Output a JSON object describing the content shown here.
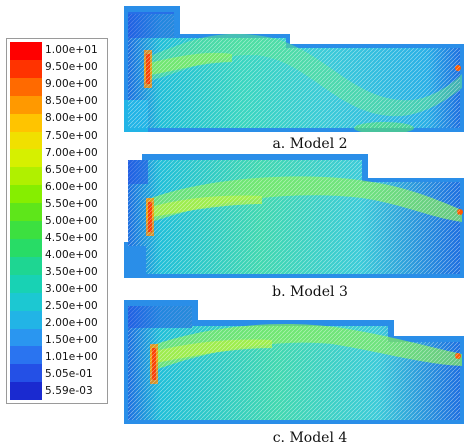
{
  "legend": {
    "labels": [
      "1.00e+01",
      "9.50e+00",
      "9.00e+00",
      "8.50e+00",
      "8.00e+00",
      "7.50e+00",
      "7.00e+00",
      "6.50e+00",
      "6.00e+00",
      "5.50e+00",
      "5.00e+00",
      "4.50e+00",
      "4.00e+00",
      "3.50e+00",
      "3.00e+00",
      "2.50e+00",
      "2.00e+00",
      "1.50e+00",
      "1.01e+00",
      "5.05e-01",
      "5.59e-03"
    ],
    "colors": [
      "#ff0000",
      "#ff3300",
      "#ff6a00",
      "#ff9900",
      "#ffc400",
      "#f0e000",
      "#d6f000",
      "#b0f000",
      "#86ee00",
      "#5ee61a",
      "#3ce040",
      "#28dc66",
      "#1ed692",
      "#18d2b4",
      "#1cc8d2",
      "#22b4e6",
      "#2a96f0",
      "#2a74f0",
      "#2450e6",
      "#1a2ad0"
    ]
  },
  "panels": [
    {
      "caption": "a. Model 2"
    },
    {
      "caption": "b. Model 3"
    },
    {
      "caption": "c. Model 4"
    }
  ]
}
